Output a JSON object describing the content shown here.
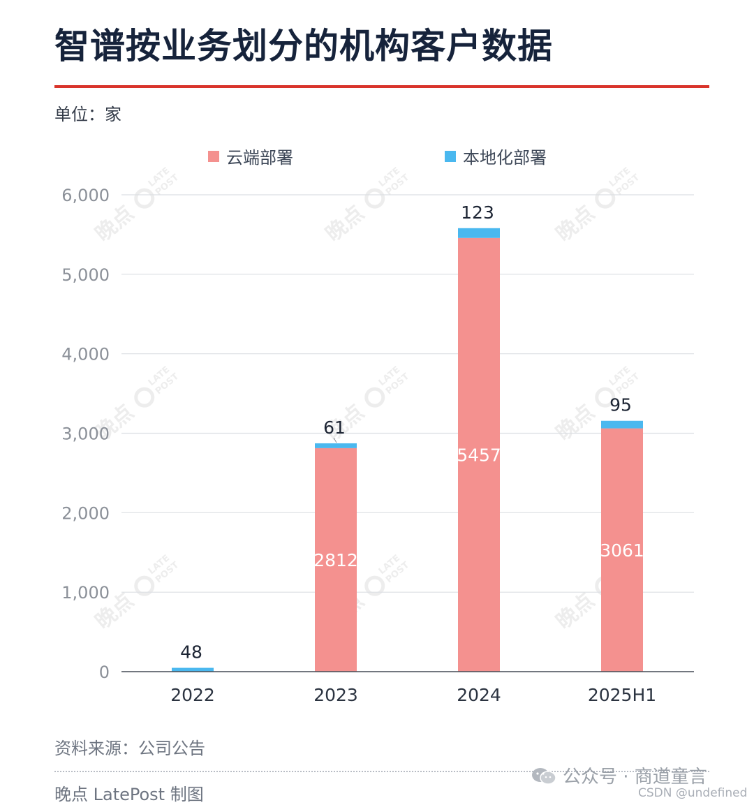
{
  "title": "智谱按业务划分的机构客户数据",
  "unit_label": "单位：家",
  "source": "资料来源：公司公告",
  "credit": "晚点 LatePost 制图",
  "watermark_account": "公众号 · 商道童言",
  "watermark_csdn": "CSDN @undefined",
  "watermark_tile": {
    "main": "晚点",
    "small_line1": "LATE",
    "small_line2": "POST"
  },
  "colors": {
    "accent_rule": "#d9342b",
    "cloud": "#f4918f",
    "local": "#4ab8ef"
  },
  "legend": [
    {
      "label": "云端部署",
      "color": "#f4918f"
    },
    {
      "label": "本地化部署",
      "color": "#4ab8ef"
    }
  ],
  "chart_data": {
    "type": "bar",
    "stacked": true,
    "categories": [
      "2022",
      "2023",
      "2024",
      "2025H1"
    ],
    "series": [
      {
        "name": "云端部署",
        "color": "#f4918f",
        "values": [
          0,
          2812,
          5457,
          3061
        ],
        "labels": [
          "",
          "2812",
          "5457",
          "3061"
        ]
      },
      {
        "name": "本地化部署",
        "color": "#4ab8ef",
        "values": [
          48,
          61,
          123,
          95
        ],
        "labels": [
          "48",
          "61",
          "123",
          "95"
        ]
      }
    ],
    "ylim": [
      0,
      6000
    ],
    "yticks": [
      0,
      1000,
      2000,
      3000,
      4000,
      5000,
      6000
    ],
    "ytick_labels": [
      "0",
      "1,000",
      "2,000",
      "3,000",
      "4,000",
      "5,000",
      "6,000"
    ],
    "grid": true,
    "legend_position": "top-center"
  }
}
